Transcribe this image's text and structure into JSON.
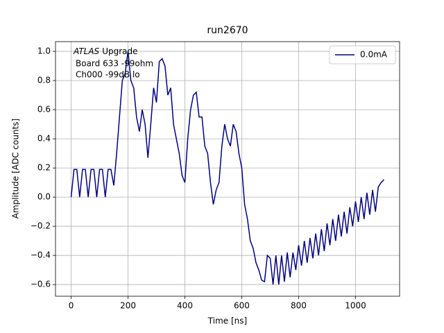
{
  "chart_data": {
    "type": "line",
    "title": "run2670",
    "xlabel": "Time [ns]",
    "ylabel": "Amplitude [ADC counts]",
    "annotation": [
      "ATLAS",
      "Upgrade",
      "Board 633 -99ohm",
      "Ch000 -99dB lo"
    ],
    "xlim": [
      -55,
      1155
    ],
    "ylim": [
      -0.68,
      1.067
    ],
    "xticks": [
      0,
      200,
      400,
      600,
      800,
      1000
    ],
    "yticks": [
      {
        "value": -0.6,
        "label": "−0.6"
      },
      {
        "value": -0.4,
        "label": "−0.4"
      },
      {
        "value": -0.2,
        "label": "−0.2"
      },
      {
        "value": 0,
        "label": "0.0"
      },
      0.2,
      0.4,
      0.6,
      0.8,
      {
        "value": 1,
        "label": "1.0"
      }
    ],
    "grid": true,
    "legend": "upper right",
    "x": [
      0,
      10,
      20,
      30,
      40,
      50,
      60,
      70,
      80,
      90,
      100,
      110,
      120,
      130,
      140,
      150,
      160,
      170,
      180,
      190,
      200,
      210,
      220,
      230,
      240,
      250,
      260,
      270,
      280,
      290,
      300,
      310,
      320,
      330,
      340,
      350,
      360,
      370,
      380,
      390,
      400,
      410,
      420,
      430,
      440,
      450,
      460,
      470,
      480,
      490,
      500,
      510,
      520,
      530,
      540,
      550,
      560,
      570,
      580,
      590,
      600,
      610,
      620,
      630,
      640,
      650,
      660,
      670,
      680,
      690,
      700,
      710,
      720,
      730,
      740,
      750,
      760,
      770,
      780,
      790,
      800,
      810,
      820,
      830,
      840,
      850,
      860,
      870,
      880,
      890,
      900,
      910,
      920,
      930,
      940,
      950,
      960,
      970,
      980,
      990,
      1000,
      1010,
      1020,
      1030,
      1040,
      1050,
      1060,
      1070,
      1080,
      1090,
      1100
    ],
    "series": [
      {
        "name": "0.0mA",
        "color": "#000080",
        "values": [
          0,
          0.19,
          0.19,
          0,
          0.19,
          0.19,
          0,
          0.19,
          0.19,
          0,
          0.19,
          0.19,
          0,
          0.19,
          0.19,
          0.08,
          0.3,
          0.55,
          0.8,
          0.85,
          1.0,
          0.8,
          0.75,
          0.55,
          0.45,
          0.6,
          0.5,
          0.27,
          0.5,
          0.75,
          0.65,
          0.93,
          0.95,
          0.9,
          0.7,
          0.75,
          0.5,
          0.4,
          0.3,
          0.15,
          0.1,
          0.4,
          0.6,
          0.7,
          0.72,
          0.55,
          0.55,
          0.35,
          0.3,
          0.1,
          -0.05,
          0.05,
          0.1,
          0.35,
          0.5,
          0.4,
          0.35,
          0.5,
          0.45,
          0.3,
          0.2,
          -0.05,
          -0.15,
          -0.3,
          -0.35,
          -0.45,
          -0.5,
          -0.57,
          -0.58,
          -0.4,
          -0.42,
          -0.6,
          -0.4,
          -0.6,
          -0.4,
          -0.58,
          -0.38,
          -0.55,
          -0.38,
          -0.5,
          -0.33,
          -0.47,
          -0.3,
          -0.45,
          -0.28,
          -0.42,
          -0.25,
          -0.4,
          -0.22,
          -0.37,
          -0.18,
          -0.33,
          -0.15,
          -0.3,
          -0.12,
          -0.27,
          -0.1,
          -0.25,
          -0.07,
          -0.2,
          -0.03,
          -0.17,
          0,
          -0.15,
          0.03,
          -0.12,
          0.05,
          -0.1,
          0.07,
          0.1,
          0.12
        ]
      }
    ]
  }
}
